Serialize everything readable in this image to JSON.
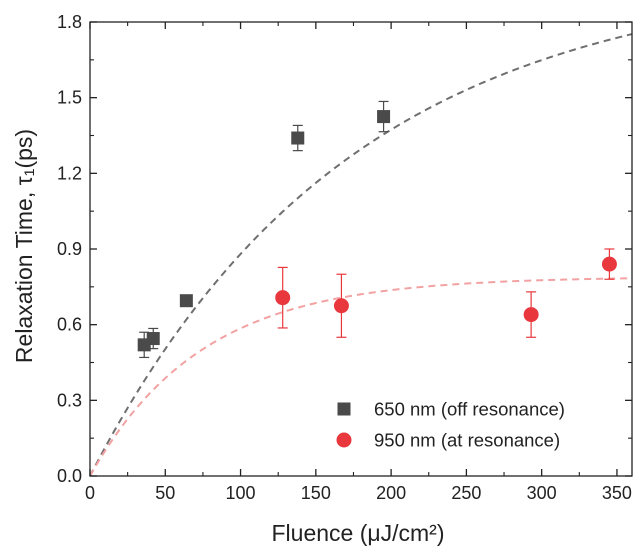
{
  "chart_data": {
    "type": "scatter",
    "xlabel": "Fluence (μJ/cm²)",
    "ylabel": "Relaxation Time, τ₁(ps)",
    "xlim": [
      0,
      360
    ],
    "ylim": [
      0,
      1.8
    ],
    "x_ticks": [
      "0",
      "50",
      "100",
      "150",
      "200",
      "250",
      "300",
      "350"
    ],
    "y_ticks": [
      "0.0",
      "0.3",
      "0.6",
      "0.9",
      "1.2",
      "1.5",
      "1.8"
    ],
    "grid": false,
    "legend_position": "bottom-right",
    "series": [
      {
        "name": "650 nm (off resonance)",
        "marker": "square",
        "color": "#4a4a4a",
        "points": [
          {
            "x": 36,
            "y": 0.52,
            "err": 0.05
          },
          {
            "x": 42,
            "y": 0.545,
            "err": 0.04
          },
          {
            "x": 64,
            "y": 0.695,
            "err": 0.02
          },
          {
            "x": 138,
            "y": 1.34,
            "err": 0.05
          },
          {
            "x": 195,
            "y": 1.425,
            "err": 0.06
          }
        ],
        "fit": {
          "style": "dashed",
          "color": "#6f6f6f",
          "a": 2.0,
          "k": 0.0058
        }
      },
      {
        "name": "950 nm (at resonance)",
        "marker": "circle",
        "color": "#e8383d",
        "points": [
          {
            "x": 128,
            "y": 0.707,
            "err": 0.12
          },
          {
            "x": 167,
            "y": 0.675,
            "err": 0.125
          },
          {
            "x": 293,
            "y": 0.64,
            "err": 0.09
          },
          {
            "x": 345,
            "y": 0.84,
            "err": 0.06
          }
        ],
        "fit": {
          "style": "dashed",
          "color": "#f2a2a2",
          "a": 0.79,
          "k": 0.0135
        }
      }
    ]
  }
}
